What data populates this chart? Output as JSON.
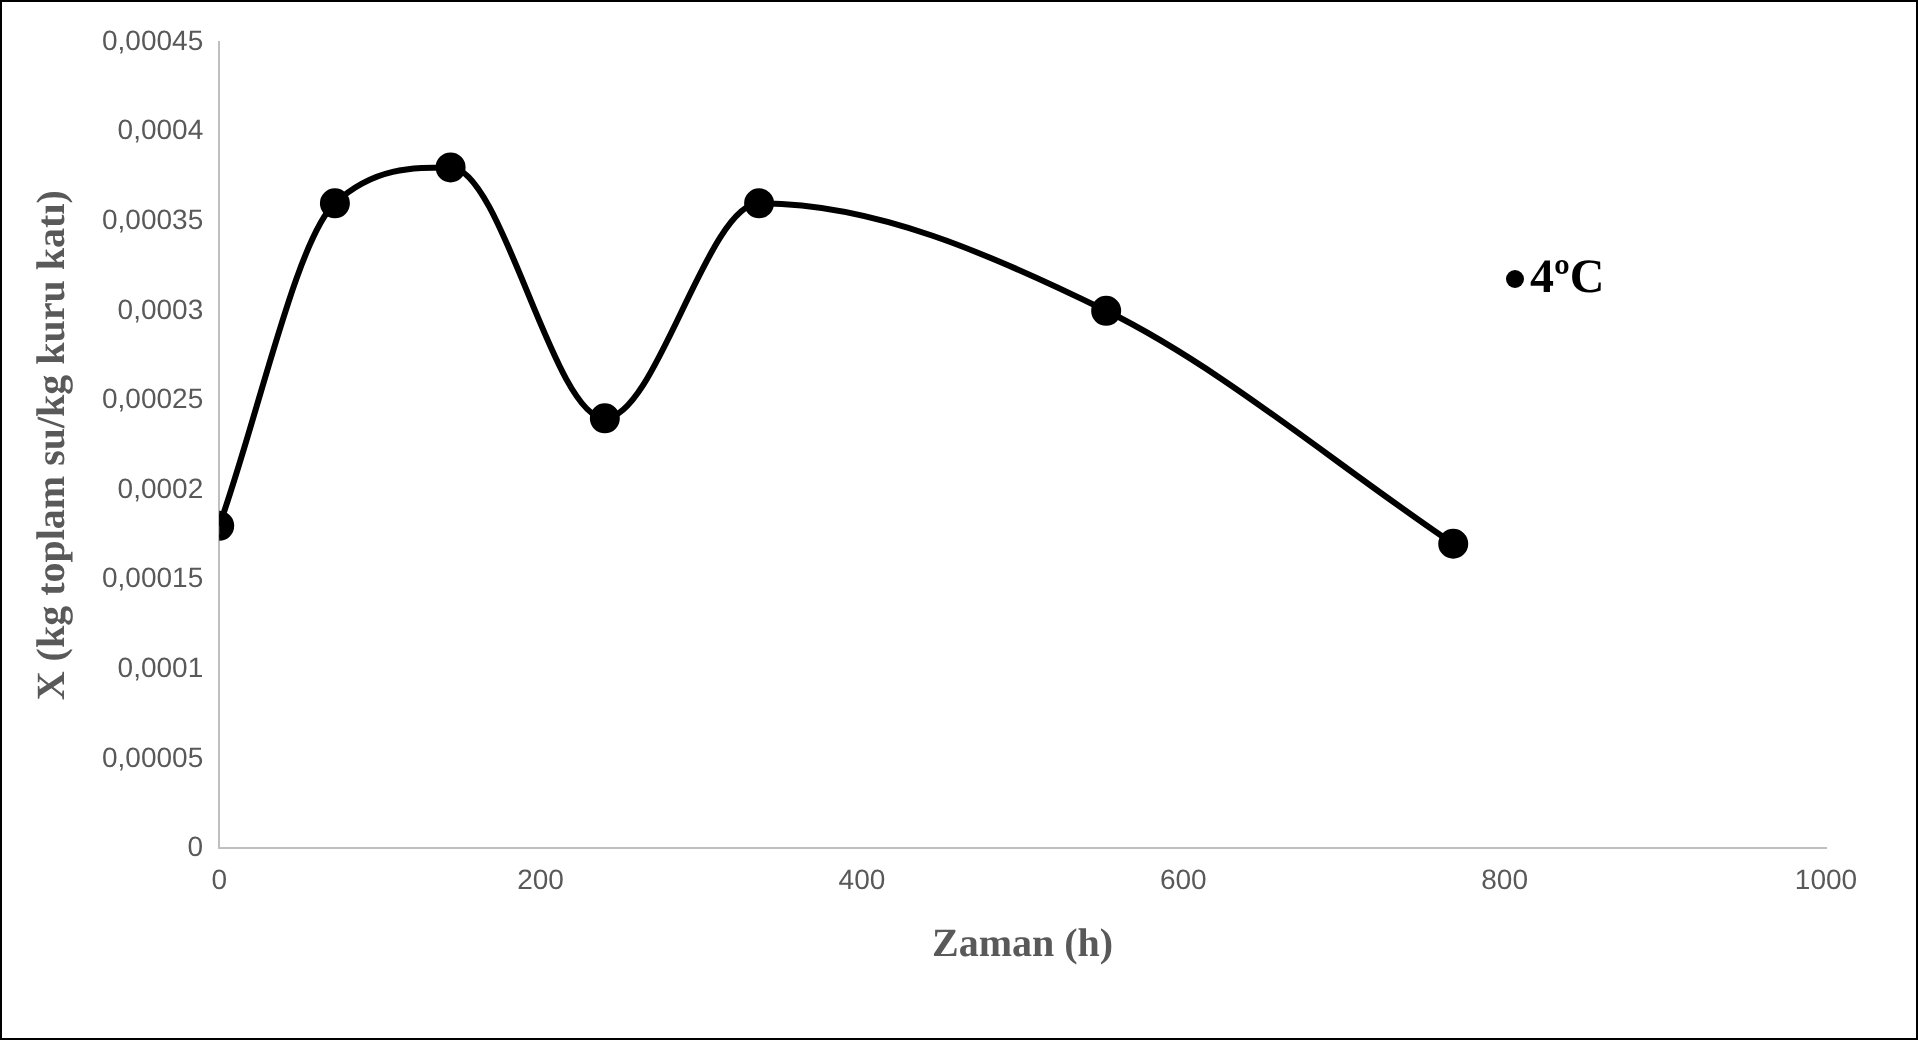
{
  "chart_data": {
    "type": "line",
    "xlabel": "Zaman (h)",
    "ylabel": "X (kg toplam su/kg kuru katı)",
    "x": [
      0,
      72,
      144,
      240,
      336,
      552,
      768
    ],
    "series": [
      {
        "name": "4ºC",
        "color": "#000000",
        "values": [
          0.00018,
          0.00036,
          0.00038,
          0.00024,
          0.00036,
          0.0003,
          0.00017
        ]
      }
    ],
    "xlim": [
      0,
      1000
    ],
    "xticks": [
      0,
      200,
      400,
      600,
      800,
      1000
    ],
    "ylim": [
      0,
      0.00045
    ],
    "yticks": [
      {
        "value": 0,
        "label": "0"
      },
      {
        "value": 5e-05,
        "label": "0,00005"
      },
      {
        "value": 0.0001,
        "label": "0,0001"
      },
      {
        "value": 0.00015,
        "label": "0,00015"
      },
      {
        "value": 0.0002,
        "label": "0,0002"
      },
      {
        "value": 0.00025,
        "label": "0,00025"
      },
      {
        "value": 0.0003,
        "label": "0,0003"
      },
      {
        "value": 0.00035,
        "label": "0,00035"
      },
      {
        "value": 0.0004,
        "label": "0,0004"
      },
      {
        "value": 0.00045,
        "label": "0,00045"
      }
    ],
    "grid": false,
    "legend": "top right",
    "marker": "circle",
    "line_style": "solid"
  }
}
